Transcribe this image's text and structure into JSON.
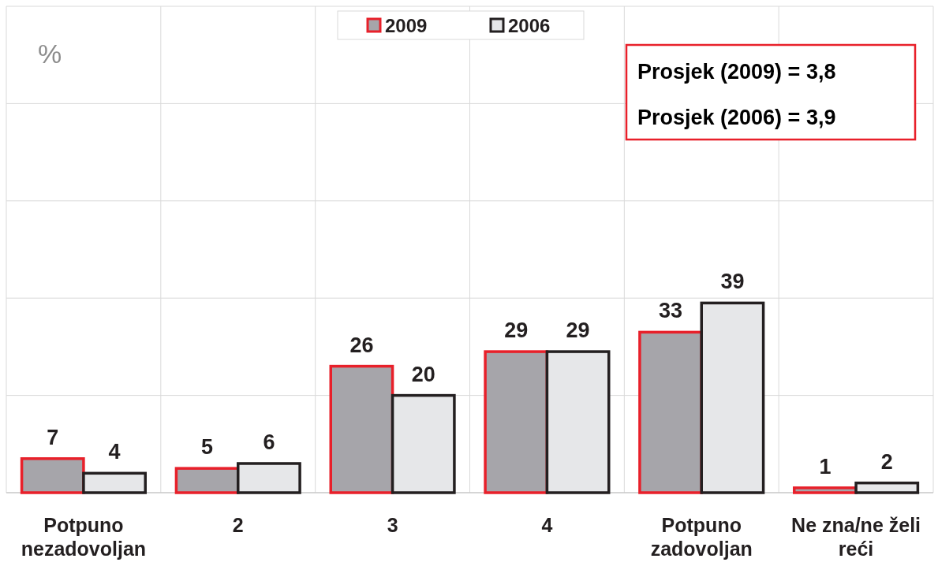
{
  "chart_data": {
    "type": "bar",
    "ylabel": "%",
    "categories": [
      "Potpuno nezadovoljan",
      "2",
      "3",
      "4",
      "Potpuno zadovoljan",
      "Ne zna/ne želi reći"
    ],
    "series": [
      {
        "name": "2009",
        "color": "#a6a5aa",
        "values": [
          7,
          5,
          26,
          29,
          33,
          1
        ]
      },
      {
        "name": "2006",
        "color": "#e6e7e9",
        "values": [
          4,
          6,
          20,
          29,
          39,
          2
        ]
      }
    ],
    "ylim": [
      0,
      100
    ],
    "yticks": [
      {
        "value": 0,
        "label": null
      },
      {
        "value": 20,
        "label": null
      },
      {
        "value": 40,
        "label": null
      },
      {
        "value": 60,
        "label": null
      },
      {
        "value": 80,
        "label": null
      },
      {
        "value": 100,
        "label": null
      }
    ],
    "tick_labels": "x",
    "grid": true,
    "legend": "top",
    "data_labels": true,
    "annotations": [
      "Prosjek (2009) = 3,8",
      "Prosjek (2006) = 3,9"
    ]
  }
}
